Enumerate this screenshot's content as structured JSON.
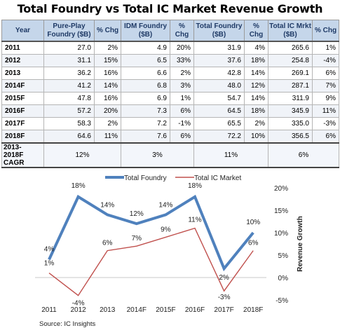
{
  "title": "Total Foundry vs Total IC Market Revenue Growth",
  "table": {
    "headers": [
      "Year",
      "Pure-Play Foundry ($B)",
      "% Chg",
      "IDM Foundry ($B)",
      "% Chg",
      "Total Foundry ($B)",
      "% Chg",
      "Total IC Mrkt ($B)",
      "% Chg"
    ],
    "rows": [
      [
        "2011",
        "27.0",
        "2%",
        "4.9",
        "20%",
        "31.9",
        "4%",
        "265.6",
        "1%"
      ],
      [
        "2012",
        "31.1",
        "15%",
        "6.5",
        "33%",
        "37.6",
        "18%",
        "254.8",
        "-4%"
      ],
      [
        "2013",
        "36.2",
        "16%",
        "6.6",
        "2%",
        "42.8",
        "14%",
        "269.1",
        "6%"
      ],
      [
        "2014F",
        "41.2",
        "14%",
        "6.8",
        "3%",
        "48.0",
        "12%",
        "287.1",
        "7%"
      ],
      [
        "2015F",
        "47.8",
        "16%",
        "6.9",
        "1%",
        "54.7",
        "14%",
        "311.9",
        "9%"
      ],
      [
        "2016F",
        "57.2",
        "20%",
        "7.3",
        "6%",
        "64.5",
        "18%",
        "345.9",
        "11%"
      ],
      [
        "2017F",
        "58.3",
        "2%",
        "7.2",
        "-1%",
        "65.5",
        "2%",
        "335.0",
        "-3%"
      ],
      [
        "2018F",
        "64.6",
        "11%",
        "7.6",
        "6%",
        "72.2",
        "10%",
        "356.5",
        "6%"
      ]
    ],
    "cagr": {
      "label": "2013-2018F CAGR",
      "pure_play": "12%",
      "idm": "3%",
      "total_foundry": "11%",
      "total_ic": "6%"
    }
  },
  "chart_data": {
    "type": "line",
    "categories": [
      "2011",
      "2012",
      "2013",
      "2014F",
      "2015F",
      "2016F",
      "2017F",
      "2018F"
    ],
    "series": [
      {
        "name": "Total Foundry",
        "values": [
          4,
          18,
          14,
          12,
          14,
          18,
          2,
          10
        ],
        "labels": [
          "4%",
          "18%",
          "14%",
          "12%",
          "14%",
          "18%",
          "2%",
          "10%"
        ],
        "color": "#4f81bd"
      },
      {
        "name": "Total IC Market",
        "values": [
          1,
          -4,
          6,
          7,
          9,
          11,
          -3,
          6
        ],
        "labels": [
          "1%",
          "-4%",
          "6%",
          "7%",
          "9%",
          "11%",
          "-3%",
          "6%"
        ],
        "color": "#c0504d"
      }
    ],
    "ylabel": "Revenue Growth",
    "ylim": [
      -5,
      20
    ],
    "yticks": [
      "20%",
      "15%",
      "10%",
      "5%",
      "0%",
      "-5%"
    ],
    "ytick_values": [
      20,
      15,
      10,
      5,
      0,
      -5
    ],
    "grid": true,
    "legend": "top"
  },
  "source": "Source:  IC Insights"
}
